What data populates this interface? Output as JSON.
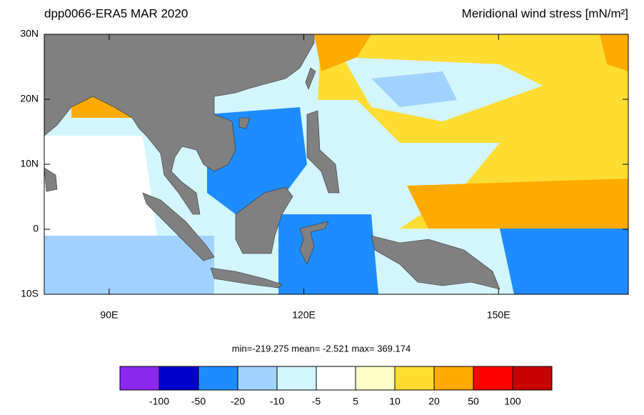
{
  "map": {
    "title_left": "dpp0066-ERA5  MAR 2020",
    "title_right": "Meridional wind stress [mN/m²]",
    "xlim": [
      80,
      170
    ],
    "ylim": [
      -10,
      30
    ],
    "xticks": [
      {
        "value": 90,
        "label": "90E"
      },
      {
        "value": 120,
        "label": "120E"
      },
      {
        "value": 150,
        "label": "150E"
      }
    ],
    "yticks": [
      {
        "value": 30,
        "label": "30N"
      },
      {
        "value": 20,
        "label": "20N"
      },
      {
        "value": 10,
        "label": "10N"
      },
      0,
      {
        "value": -10,
        "label": "10S"
      }
    ],
    "stats": "min=-219.275  mean=  -2.521  max= 369.174",
    "colorbar": {
      "colors": [
        "#8c28f0",
        "#0000cd",
        "#1e8cff",
        "#a0d2ff",
        "#d2f5ff",
        "#ffffff",
        "#ffffc8",
        "#ffdc32",
        "#ffaa00",
        "#ff0000",
        "#c80000"
      ],
      "levels": [
        -100,
        -50,
        -20,
        -10,
        -5,
        5,
        10,
        20,
        50,
        100
      ]
    }
  }
}
